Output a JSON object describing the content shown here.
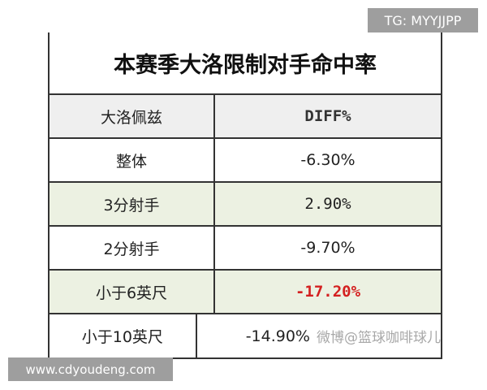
{
  "tag": "TG: MYYJJPP",
  "site": "www.cdyoudeng.com",
  "watermark": "微博@篮球咖啡球儿",
  "table": {
    "title": "本赛季大洛限制对手命中率",
    "headers": [
      "大洛佩兹",
      "DIFF%"
    ],
    "rows": [
      {
        "label": "整体",
        "value": "-6.30%"
      },
      {
        "label": "3分射手",
        "value": "2.90%"
      },
      {
        "label": "2分射手",
        "value": "-9.70%"
      },
      {
        "label": "小于6英尺",
        "value": "-17.20%",
        "highlight_color": "#d42020"
      },
      {
        "label": "小于10英尺",
        "value": "-14.90%"
      }
    ]
  }
}
